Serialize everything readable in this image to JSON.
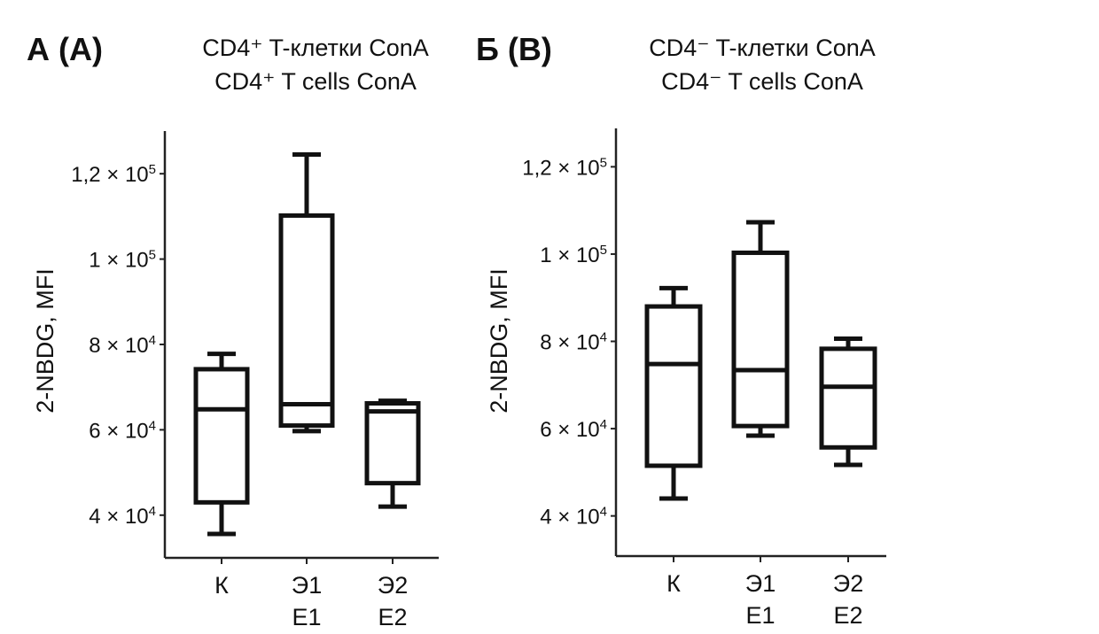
{
  "chart_data": [
    {
      "type": "box",
      "panel_label": "А (A)",
      "title": [
        "CD4⁺ T-клетки ConA",
        "CD4⁺ T cells ConA"
      ],
      "ylabel": "2-NBDG, MFI",
      "xlabel": "",
      "ylim": [
        30000,
        130000
      ],
      "yticks": [
        {
          "value": 120000,
          "mant": "1,2",
          "exp": "5"
        },
        {
          "value": 100000,
          "mant": "1",
          "exp": "5"
        },
        {
          "value": 80000,
          "mant": "8",
          "exp": "4"
        },
        {
          "value": 60000,
          "mant": "6",
          "exp": "4"
        },
        {
          "value": 40000,
          "mant": "4",
          "exp": "4"
        }
      ],
      "categories": [
        [
          "К"
        ],
        [
          "Э1",
          "E1"
        ],
        [
          "Э2",
          "E2"
        ]
      ],
      "boxes": [
        {
          "min": 35600,
          "q1": 43000,
          "median": 64800,
          "q3": 74200,
          "max": 77800
        },
        {
          "min": 59700,
          "q1": 61000,
          "median": 66000,
          "q3": 110200,
          "max": 124500
        },
        {
          "min": 42000,
          "q1": 47500,
          "median": 64300,
          "q3": 66200,
          "max": 66800
        }
      ]
    },
    {
      "type": "box",
      "panel_label": "Б (B)",
      "title": [
        "CD4⁻ T-клетки ConA",
        "CD4⁻ T cells ConA"
      ],
      "ylabel": "2-NBDG, MFI",
      "xlabel": "",
      "ylim": [
        30800,
        128800
      ],
      "yticks": [
        {
          "value": 120000,
          "mant": "1,2",
          "exp": "5"
        },
        {
          "value": 100000,
          "mant": "1",
          "exp": "5"
        },
        {
          "value": 80000,
          "mant": "8",
          "exp": "4"
        },
        {
          "value": 60000,
          "mant": "6",
          "exp": "4"
        },
        {
          "value": 40000,
          "mant": "4",
          "exp": "4"
        }
      ],
      "categories": [
        [
          "К"
        ],
        [
          "Э1",
          "E1"
        ],
        [
          "Э2",
          "E2"
        ]
      ],
      "boxes": [
        {
          "min": 44000,
          "q1": 51500,
          "median": 74800,
          "q3": 88000,
          "max": 92200
        },
        {
          "min": 58400,
          "q1": 60600,
          "median": 73400,
          "q3": 100300,
          "max": 107300
        },
        {
          "min": 51700,
          "q1": 55700,
          "median": 69600,
          "q3": 78300,
          "max": 80600
        }
      ]
    }
  ]
}
